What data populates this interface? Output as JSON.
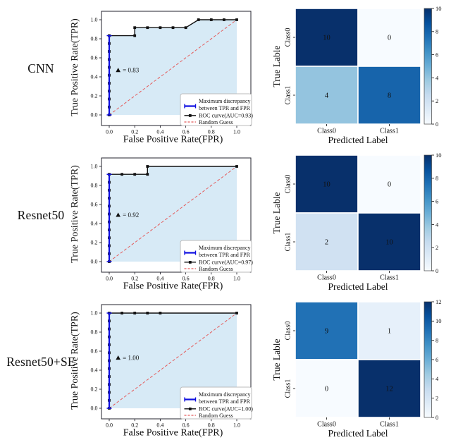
{
  "colors": {
    "background": "#ffffff",
    "roc_fill": "#d7eaf6",
    "roc_line": "#111111",
    "marker": "#111111",
    "discrepancy_line": "#1010e0",
    "random_guess": "#e45c5c",
    "spine": "#23232d",
    "legend_border": "#bbbbbb",
    "heatmap_colormap": [
      "#f7fbff",
      "#deebf7",
      "#c6dbef",
      "#9ecae1",
      "#6baed6",
      "#4292c6",
      "#2171b5",
      "#08519c",
      "#08306b"
    ]
  },
  "legend": {
    "max_discrepancy_line1": "Maximum discrepancy",
    "max_discrepancy_line2": "between TPR and FPR",
    "random_guess": "Random Guess"
  },
  "rows": [
    {
      "label": "CNN",
      "roc": 0,
      "cm": 1
    },
    {
      "label": "Resnet50",
      "roc": 2,
      "cm": 3
    },
    {
      "label": "Resnet50+SE",
      "roc": 4,
      "cm": 5
    }
  ],
  "chart_data": [
    {
      "type": "line",
      "subtype": "roc",
      "model": "CNN",
      "xlabel": "False Positive Rate(FPR)",
      "ylabel": "True Positive Rate(TPR)",
      "xlim": [
        0,
        1
      ],
      "ylim": [
        0,
        1
      ],
      "x_ticks": [
        "0.0",
        "0.2",
        "0.4",
        "0.6",
        "0.8",
        "1.0"
      ],
      "y_ticks": [
        "0.0",
        "0.2",
        "0.4",
        "0.6",
        "0.8",
        "1.0"
      ],
      "legend_position": "lower right",
      "series": [
        {
          "name": "Maximum discrepancy between TPR and FPR",
          "points": [
            [
              0,
              0
            ],
            [
              0,
              0.833
            ]
          ]
        },
        {
          "name": "ROC curve(AUC=0.93)",
          "points": [
            [
              0,
              0
            ],
            [
              0,
              0.083
            ],
            [
              0,
              0.167
            ],
            [
              0,
              0.25
            ],
            [
              0,
              0.333
            ],
            [
              0,
              0.417
            ],
            [
              0,
              0.5
            ],
            [
              0,
              0.583
            ],
            [
              0,
              0.667
            ],
            [
              0,
              0.75
            ],
            [
              0,
              0.833
            ],
            [
              0.2,
              0.833
            ],
            [
              0.2,
              0.917
            ],
            [
              0.3,
              0.917
            ],
            [
              0.4,
              0.917
            ],
            [
              0.5,
              0.917
            ],
            [
              0.6,
              0.917
            ],
            [
              0.7,
              1.0
            ],
            [
              0.8,
              1.0
            ],
            [
              0.9,
              1.0
            ],
            [
              1.0,
              1.0
            ]
          ]
        },
        {
          "name": "Random Guess",
          "points": [
            [
              0,
              0
            ],
            [
              1,
              1
            ]
          ]
        }
      ],
      "annotation": {
        "symbol": "▲",
        "text": "= 0.83",
        "x": 0.07,
        "y": 0.47
      }
    },
    {
      "type": "heatmap",
      "model": "CNN",
      "xlabel": "Predicted Label",
      "ylabel": "True Lable",
      "x_tick_labels": [
        "Class0",
        "Class1"
      ],
      "y_tick_labels": [
        "Class0",
        "Class1"
      ],
      "matrix": [
        [
          10,
          0
        ],
        [
          4,
          8
        ]
      ],
      "vmin": 0,
      "vmax": 10,
      "colorbar_ticks": [
        0,
        2,
        4,
        6,
        8,
        10
      ],
      "colormap": "Blues"
    },
    {
      "type": "line",
      "subtype": "roc",
      "model": "Resnet50",
      "xlabel": "False Positive Rate(FPR)",
      "ylabel": "True Positive Rate(TPR)",
      "xlim": [
        0,
        1
      ],
      "ylim": [
        0,
        1
      ],
      "x_ticks": [
        "0.0",
        "0.2",
        "0.4",
        "0.6",
        "0.8",
        "1.0"
      ],
      "y_ticks": [
        "0.0",
        "0.2",
        "0.4",
        "0.6",
        "0.8",
        "1.0"
      ],
      "legend_position": "lower right",
      "series": [
        {
          "name": "Maximum discrepancy between TPR and FPR",
          "points": [
            [
              0,
              0
            ],
            [
              0,
              0.917
            ]
          ]
        },
        {
          "name": "ROC curve(AUC=0.97)",
          "points": [
            [
              0,
              0
            ],
            [
              0,
              0.083
            ],
            [
              0,
              0.167
            ],
            [
              0,
              0.25
            ],
            [
              0,
              0.333
            ],
            [
              0,
              0.417
            ],
            [
              0,
              0.5
            ],
            [
              0,
              0.583
            ],
            [
              0,
              0.667
            ],
            [
              0,
              0.75
            ],
            [
              0,
              0.833
            ],
            [
              0,
              0.917
            ],
            [
              0.1,
              0.917
            ],
            [
              0.2,
              0.917
            ],
            [
              0.3,
              0.917
            ],
            [
              0.3,
              1.0
            ],
            [
              1.0,
              1.0
            ]
          ]
        },
        {
          "name": "Random Guess",
          "points": [
            [
              0,
              0
            ],
            [
              1,
              1
            ]
          ]
        }
      ],
      "annotation": {
        "symbol": "▲",
        "text": "= 0.92",
        "x": 0.07,
        "y": 0.49
      }
    },
    {
      "type": "heatmap",
      "model": "Resnet50",
      "xlabel": "Predicted Label",
      "ylabel": "True Lable",
      "x_tick_labels": [
        "Class0",
        "Class1"
      ],
      "y_tick_labels": [
        "Class0",
        "Class1"
      ],
      "matrix": [
        [
          10,
          0
        ],
        [
          2,
          10
        ]
      ],
      "vmin": 0,
      "vmax": 10,
      "colorbar_ticks": [
        0,
        2,
        4,
        6,
        8,
        10
      ],
      "colormap": "Blues"
    },
    {
      "type": "line",
      "subtype": "roc",
      "model": "Resnet50+SE",
      "xlabel": "False Positive Rate(FPR)",
      "ylabel": "True Positive Rate(TPR)",
      "xlim": [
        0,
        1
      ],
      "ylim": [
        0,
        1
      ],
      "x_ticks": [
        "0.0",
        "0.2",
        "0.4",
        "0.6",
        "0.8",
        "1.0"
      ],
      "y_ticks": [
        "0.0",
        "0.2",
        "0.4",
        "0.6",
        "0.8",
        "1.0"
      ],
      "legend_position": "lower right",
      "series": [
        {
          "name": "Maximum discrepancy between TPR and FPR",
          "points": [
            [
              0,
              0
            ],
            [
              0,
              1.0
            ]
          ]
        },
        {
          "name": "ROC curve(AUC=1.00)",
          "points": [
            [
              0,
              0
            ],
            [
              0,
              0.083
            ],
            [
              0,
              0.167
            ],
            [
              0,
              0.25
            ],
            [
              0,
              0.333
            ],
            [
              0,
              0.417
            ],
            [
              0,
              0.5
            ],
            [
              0,
              0.583
            ],
            [
              0,
              0.667
            ],
            [
              0,
              0.75
            ],
            [
              0,
              0.833
            ],
            [
              0,
              0.917
            ],
            [
              0,
              1.0
            ],
            [
              0.1,
              1.0
            ],
            [
              0.2,
              1.0
            ],
            [
              0.3,
              1.0
            ],
            [
              0.4,
              1.0
            ],
            [
              1.0,
              1.0
            ]
          ]
        },
        {
          "name": "Random Guess",
          "points": [
            [
              0,
              0
            ],
            [
              1,
              1
            ]
          ]
        }
      ],
      "annotation": {
        "symbol": "▲",
        "text": "= 1.00",
        "x": 0.07,
        "y": 0.53
      }
    },
    {
      "type": "heatmap",
      "model": "Resnet50+SE",
      "xlabel": "Predicted Label",
      "ylabel": "True Lable",
      "x_tick_labels": [
        "Class0",
        "Class1"
      ],
      "y_tick_labels": [
        "Class0",
        "Class1"
      ],
      "matrix": [
        [
          9,
          1
        ],
        [
          0,
          12
        ]
      ],
      "vmin": 0,
      "vmax": 12,
      "colorbar_ticks": [
        0,
        2,
        4,
        6,
        8,
        10,
        12
      ],
      "colormap": "Blues"
    }
  ]
}
